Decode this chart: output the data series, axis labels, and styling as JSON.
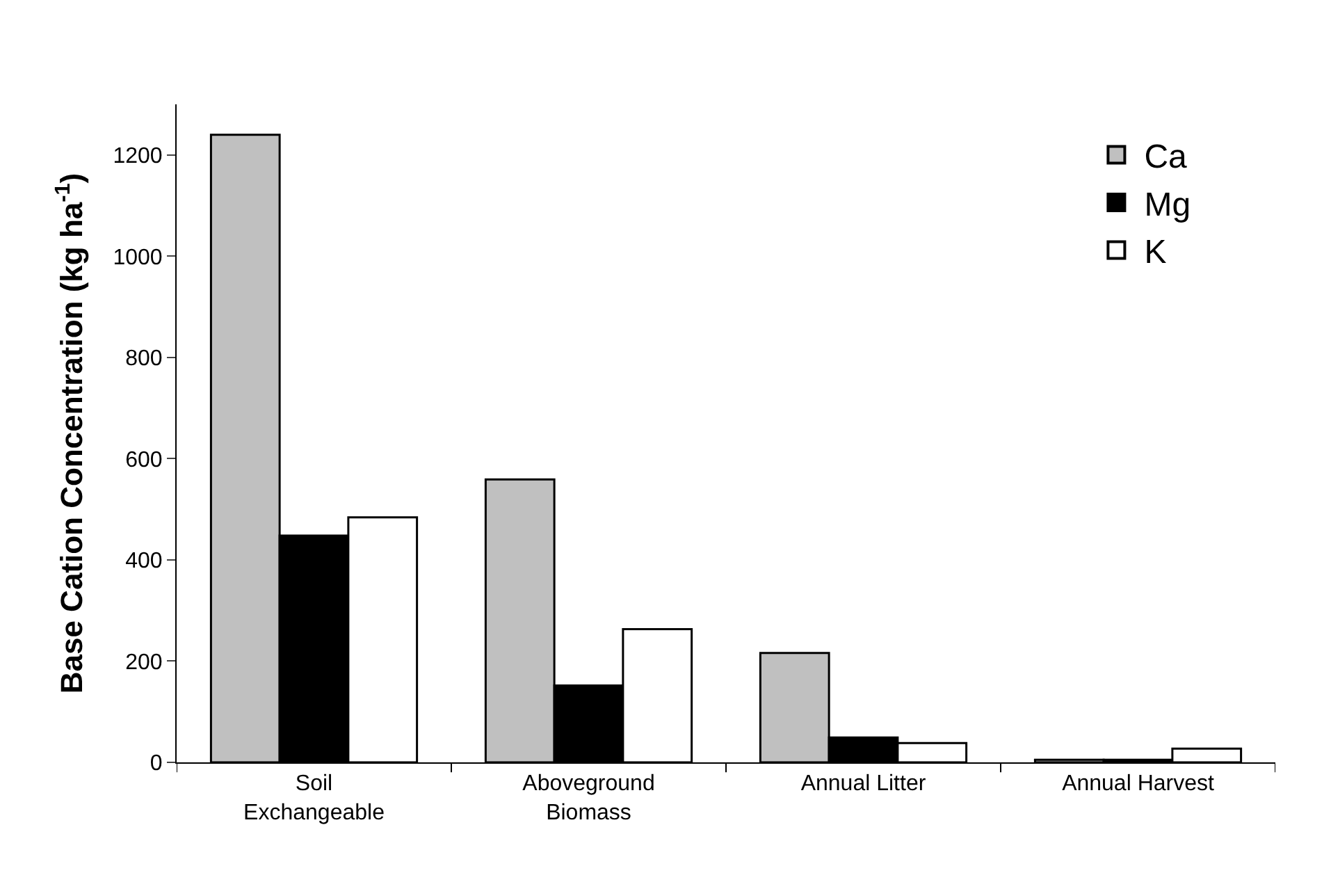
{
  "chart_data": {
    "type": "bar",
    "ylabel": "Base Cation Concentration (kg ha$^{-1}$)",
    "categories": [
      "Soil\nExchangeable",
      "Aboveground\nBiomass",
      "Annual Litter",
      "Annual Harvest"
    ],
    "series": [
      {
        "name": "Ca",
        "color": "#c0c0c0",
        "values": [
          1240,
          559,
          216,
          5
        ]
      },
      {
        "name": "Mg",
        "color": "#000000",
        "values": [
          448,
          152,
          49,
          5
        ]
      },
      {
        "name": "K",
        "color": "#ffffff",
        "values": [
          484,
          263,
          38,
          27
        ]
      }
    ],
    "ylim": [
      0,
      1300
    ],
    "yticks": [
      0,
      200,
      400,
      600,
      800,
      1000,
      1200
    ],
    "grid": false,
    "legend": "top right"
  }
}
